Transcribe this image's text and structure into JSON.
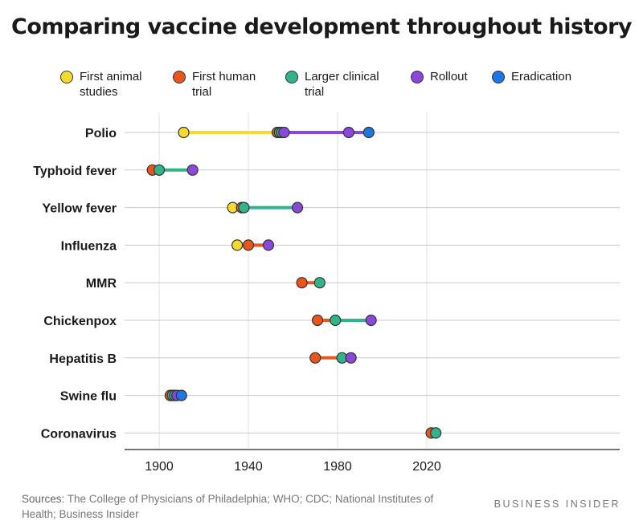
{
  "title": "Comparing vaccine development throughout history",
  "legend": [
    {
      "label": "First animal\nstudies",
      "color": "#f6db2d"
    },
    {
      "label": "First human\ntrial",
      "color": "#e8561c"
    },
    {
      "label": "Larger clinical\ntrial",
      "color": "#31b48b"
    },
    {
      "label": "Rollout",
      "color": "#8b46dc"
    },
    {
      "label": "Eradication",
      "color": "#1c76e6"
    }
  ],
  "sources": {
    "prefix": "Sources:",
    "text": " The College of Physicians of Philadelphia; WHO; CDC; National Institutes of Health; Business Insider"
  },
  "brand": "BUSINESS INSIDER",
  "chart_data": {
    "type": "scatter",
    "title": "Comparing vaccine development throughout history",
    "xlabel": "",
    "ylabel": "",
    "xlim": [
      1890,
      2030
    ],
    "xticks": [
      1900,
      1940,
      1980,
      2020
    ],
    "grid": true,
    "legend_position": "top",
    "stages": [
      "First animal studies",
      "First human trial",
      "Larger clinical trial",
      "Rollout",
      "Eradication"
    ],
    "stage_colors": [
      "#f6db2d",
      "#e8561c",
      "#31b48b",
      "#8b46dc",
      "#1c76e6"
    ],
    "rows": [
      {
        "name": "Polio",
        "points": [
          [
            1911,
            0
          ],
          [
            1953,
            1
          ],
          [
            1954,
            2
          ],
          [
            1955,
            2
          ],
          [
            1956,
            3
          ],
          [
            1985,
            3
          ],
          [
            1994,
            4
          ]
        ]
      },
      {
        "name": "Typhoid fever",
        "points": [
          [
            1897,
            1
          ],
          [
            1900,
            2
          ],
          [
            1915,
            3
          ]
        ]
      },
      {
        "name": "Yellow fever",
        "points": [
          [
            1933,
            0
          ],
          [
            1937,
            1
          ],
          [
            1938,
            2
          ],
          [
            1962,
            3
          ]
        ]
      },
      {
        "name": "Influenza",
        "points": [
          [
            1935,
            0
          ],
          [
            1940,
            1
          ],
          [
            1949,
            3
          ]
        ]
      },
      {
        "name": "MMR",
        "points": [
          [
            1964,
            1
          ],
          [
            1972,
            2
          ]
        ]
      },
      {
        "name": "Chickenpox",
        "points": [
          [
            1971,
            1
          ],
          [
            1979,
            2
          ],
          [
            1995,
            3
          ]
        ]
      },
      {
        "name": "Hepatitis B",
        "points": [
          [
            1970,
            1
          ],
          [
            1982,
            2
          ],
          [
            1986,
            3
          ]
        ]
      },
      {
        "name": "Swine flu",
        "points": [
          [
            1905,
            1
          ],
          [
            1906,
            2
          ],
          [
            1907,
            2
          ],
          [
            1908,
            3
          ],
          [
            1910,
            4
          ]
        ]
      },
      {
        "name": "Coronavirus",
        "points": [
          [
            2022,
            1
          ],
          [
            2024,
            2
          ]
        ]
      }
    ]
  }
}
